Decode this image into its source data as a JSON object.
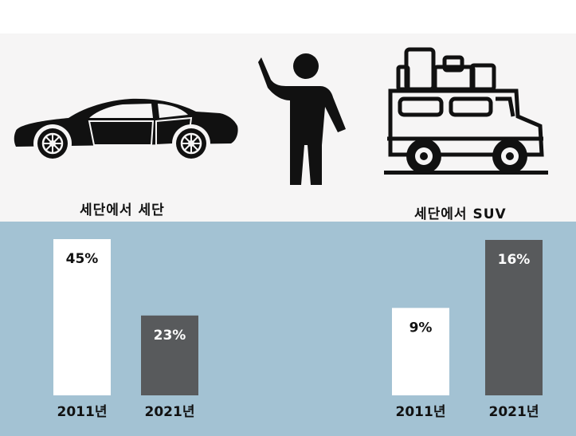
{
  "icons": {
    "left": "sedan-car-icon",
    "middle": "hitchhiker-person-icon",
    "right": "suv-with-luggage-icon"
  },
  "colors": {
    "background_top": "#f6f5f5",
    "background_bottom": "#a3c2d3",
    "bar_2011": "#ffffff",
    "bar_2021": "#585a5c",
    "label_dark": "#111111",
    "label_light": "#ffffff"
  },
  "chart_data": [
    {
      "type": "bar",
      "title": "세단에서 세단",
      "categories": [
        "2011년",
        "2021년"
      ],
      "values": [
        45,
        23
      ],
      "data_labels": [
        "45%",
        "23%"
      ],
      "ylim": [
        0,
        45
      ]
    },
    {
      "type": "bar",
      "title": "세단에서 SUV",
      "categories": [
        "2011년",
        "2021년"
      ],
      "values": [
        9,
        16
      ],
      "data_labels": [
        "9%",
        "16%"
      ],
      "ylim": [
        0,
        16
      ]
    }
  ]
}
